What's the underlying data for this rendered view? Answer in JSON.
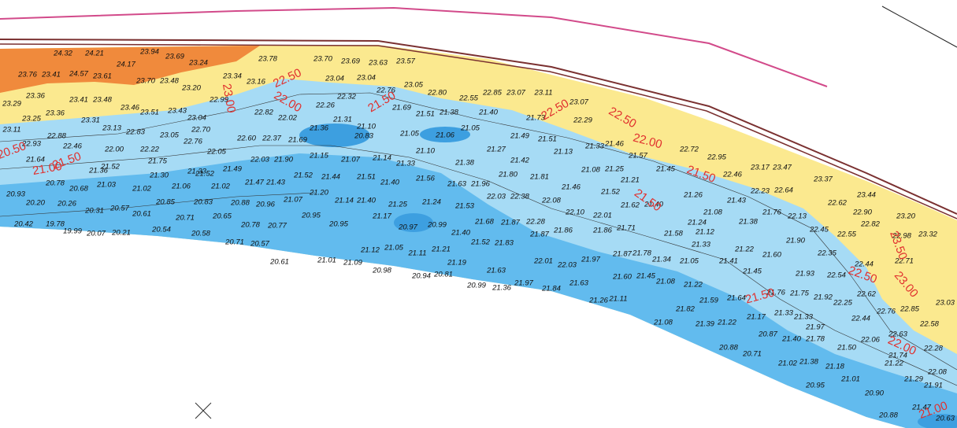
{
  "spot_heights": [
    "24.32",
    "24.21",
    "24.17",
    "23.94",
    "23.69",
    "23.24",
    "23.70",
    "23.48",
    "23.20",
    "23.76",
    "23.41",
    "24.57",
    "23.61",
    "23.78",
    "23.70",
    "23.69",
    "23.63",
    "23.57",
    "23.34",
    "23.16",
    "23.04",
    "23.04",
    "22.76",
    "23.05",
    "22.80",
    "22.55",
    "22.85",
    "23.07",
    "23.11",
    "23.07",
    "23.29",
    "23.36",
    "23.41",
    "23.48",
    "23.46",
    "23.51",
    "23.43",
    "22.99",
    "23.25",
    "23.36",
    "23.04",
    "22.82",
    "22.32",
    "22.26",
    "23.11",
    "23.31",
    "23.13",
    "22.83",
    "23.05",
    "22.70",
    "22.02",
    "21.36",
    "21.31",
    "21.10",
    "21.69",
    "21.51",
    "21.38",
    "21.40",
    "21.73",
    "22.29",
    "22.93",
    "22.88",
    "22.46",
    "22.00",
    "22.22",
    "22.76",
    "22.60",
    "22.37",
    "21.69",
    "20.83",
    "21.05",
    "21.06",
    "21.05",
    "21.49",
    "21.51",
    "21.33",
    "21.46",
    "21.57",
    "22.72",
    "22.95",
    "21.64",
    "21.52",
    "21.75",
    "22.05",
    "21.33",
    "21.49",
    "22.03",
    "21.90",
    "21.15",
    "21.07",
    "21.14",
    "21.10",
    "21.27",
    "21.13",
    "21.33",
    "21.38",
    "21.42",
    "21.08",
    "21.25",
    "21.45",
    "22.46",
    "23.17",
    "23.47",
    "20.78",
    "21.36",
    "21.30",
    "21.52",
    "21.47",
    "21.43",
    "21.52",
    "21.44",
    "21.51",
    "21.40",
    "21.56",
    "21.63",
    "21.96",
    "21.80",
    "21.81",
    "21.21",
    "22.23",
    "22.64",
    "23.37",
    "20.93",
    "20.68",
    "21.03",
    "21.02",
    "21.06",
    "21.02",
    "21.20",
    "22.03",
    "22.38",
    "22.08",
    "21.46",
    "21.52",
    "21.26",
    "21.43",
    "23.44",
    "20.20",
    "20.26",
    "20.31",
    "20.57",
    "20.85",
    "20.83",
    "20.88",
    "20.96",
    "21.07",
    "21.14",
    "21.40",
    "21.25",
    "21.24",
    "21.53",
    "21.62",
    "21.40",
    "21.08",
    "21.76",
    "22.13",
    "22.62",
    "22.90",
    "23.20",
    "20.42",
    "19.78",
    "20.61",
    "20.71",
    "20.65",
    "20.95",
    "20.78",
    "20.77",
    "20.95",
    "21.17",
    "20.97",
    "20.99",
    "21.68",
    "21.87",
    "22.28",
    "22.10",
    "22.01",
    "21.24",
    "21.38",
    "22.45",
    "22.55",
    "22.82",
    "22.98",
    "23.32",
    "19.99",
    "20.07",
    "20.21",
    "20.54",
    "20.58",
    "20.71",
    "20.57",
    "21.40",
    "21.87",
    "21.86",
    "21.86",
    "21.71",
    "21.58",
    "21.12",
    "21.90",
    "21.12",
    "21.05",
    "21.11",
    "21.21",
    "21.52",
    "21.83",
    "21.33",
    "21.22",
    "21.60",
    "22.35",
    "22.44",
    "20.61",
    "21.01",
    "21.09",
    "21.19",
    "22.01",
    "22.03",
    "21.97",
    "21.87",
    "21.78",
    "21.34",
    "21.05",
    "21.41",
    "22.71",
    "20.98",
    "20.94",
    "20.81",
    "21.63",
    "21.60",
    "21.45",
    "21.45",
    "21.93",
    "22.54",
    "20.99",
    "21.36",
    "21.97",
    "21.84",
    "21.63",
    "21.08",
    "21.22",
    "21.76",
    "21.75",
    "21.92",
    "22.62",
    "21.26",
    "21.11",
    "21.59",
    "21.64",
    "21.82",
    "21.33",
    "22.25",
    "21.08",
    "21.39",
    "21.22",
    "21.17",
    "21.33",
    "22.44",
    "22.76",
    "22.85",
    "22.58",
    "23.03",
    "21.97",
    "20.87",
    "21.40",
    "21.78",
    "22.06",
    "22.63",
    "22.28",
    "20.88",
    "20.71",
    "21.50",
    "21.74",
    "21.02",
    "21.38",
    "21.18",
    "21.22",
    "22.08",
    "21.01",
    "21.29",
    "20.95",
    "20.90",
    "21.91",
    "21.47",
    "20.88",
    "20.63"
  ],
  "contour_labels": [
    "22.50",
    "22.00",
    "21.50",
    "23.00",
    "21.50",
    "21.00",
    "20.50",
    "22.50",
    "22.50",
    "22.00",
    "21.50",
    "21.50",
    "23.50",
    "22.50",
    "23.00",
    "21.50",
    "22.00",
    "21.00"
  ]
}
